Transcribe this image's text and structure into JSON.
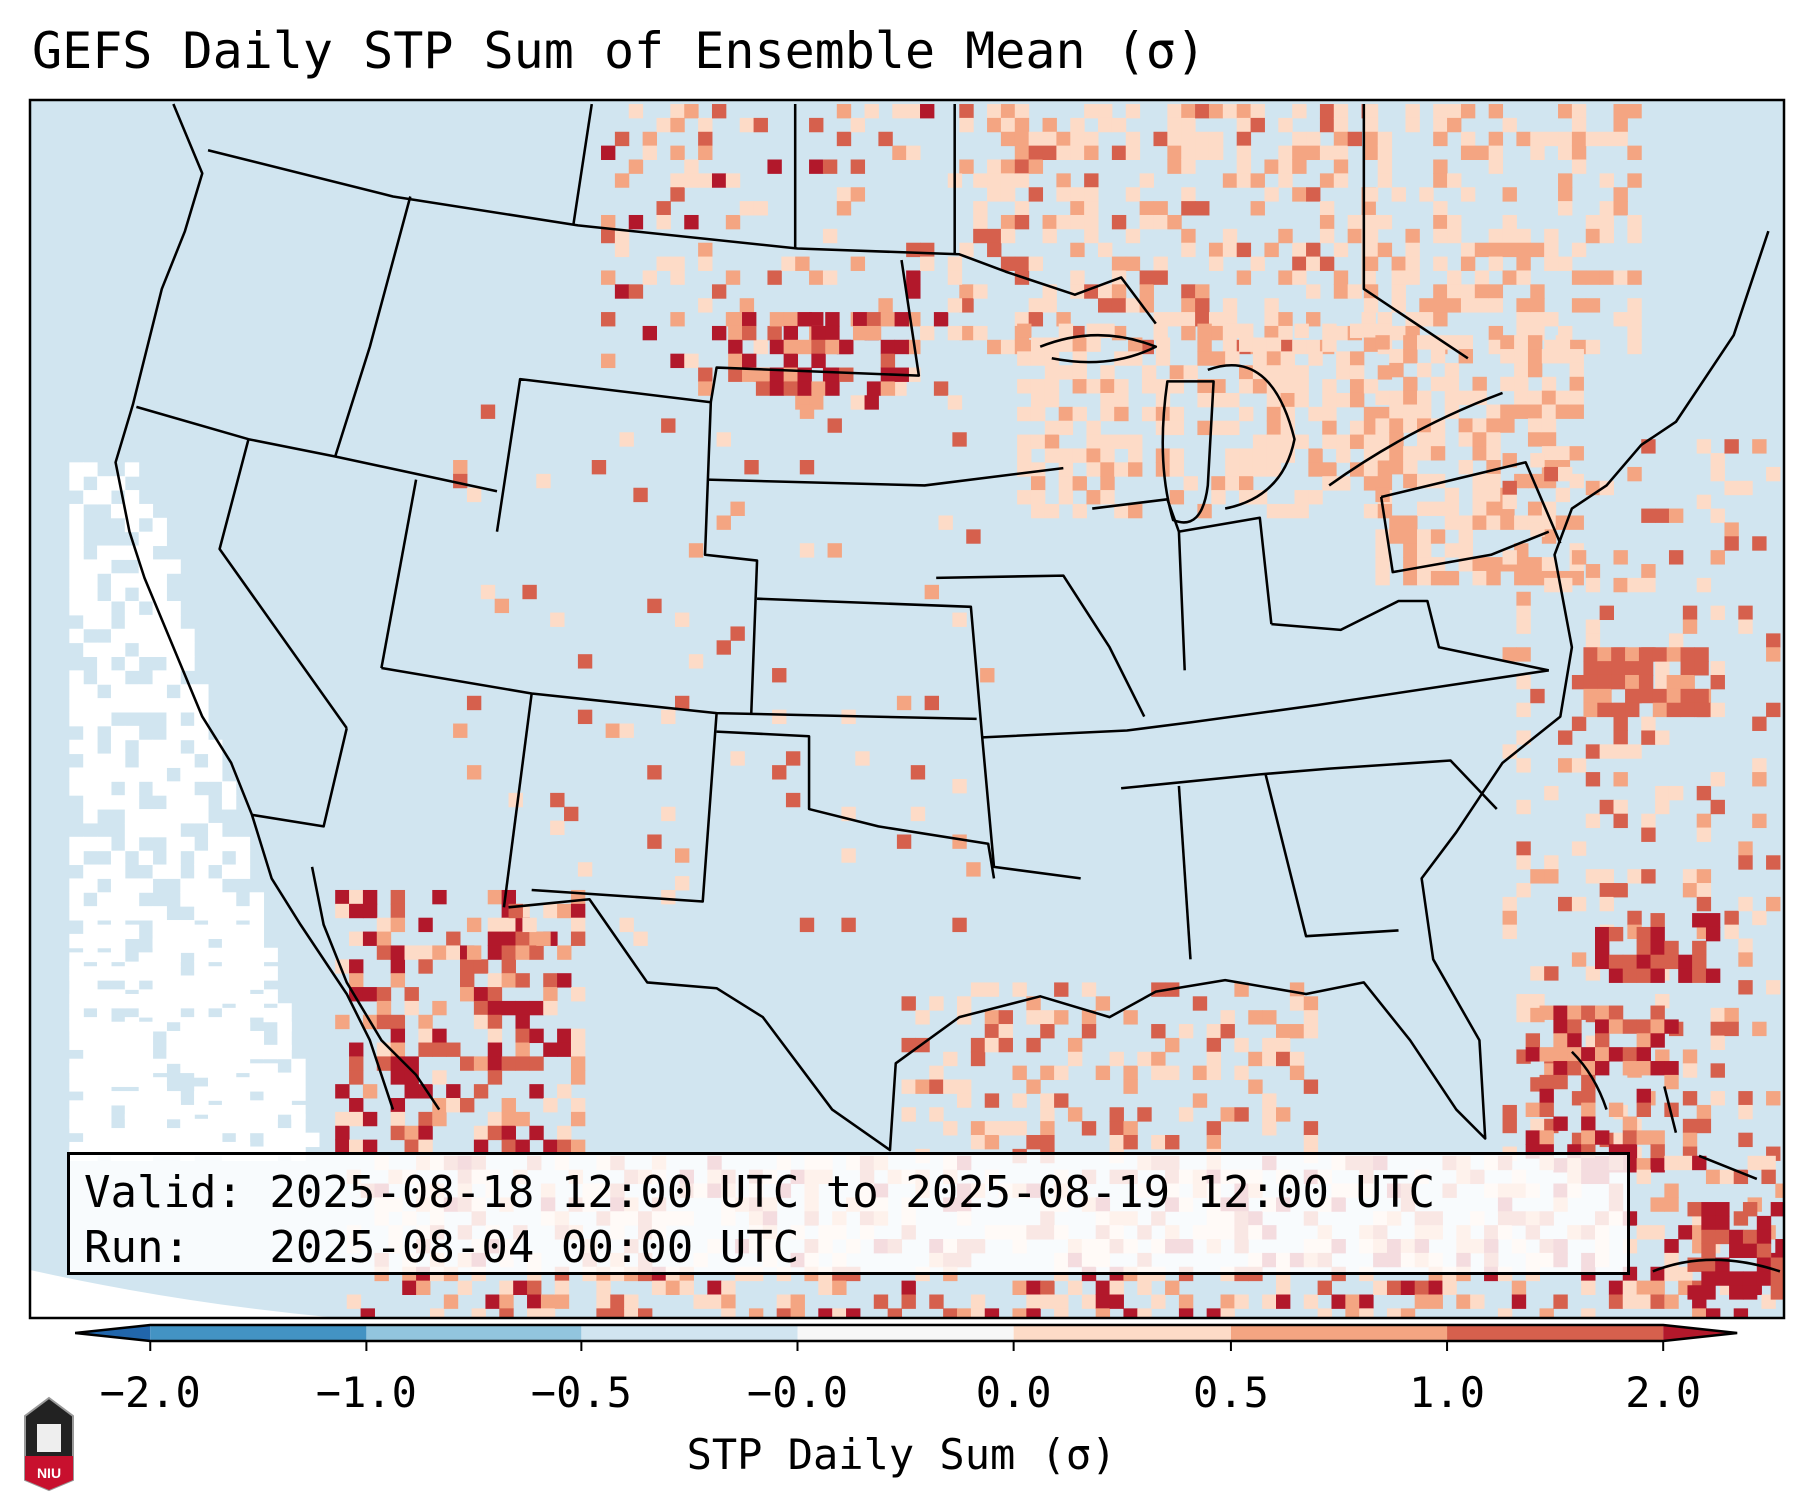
{
  "title": "GEFS Daily STP Sum of Ensemble Mean (σ)",
  "legend": {
    "valid": "Valid: 2025-08-18 12:00 UTC to 2025-08-19 12:00 UTC",
    "run": "Run:   2025-08-04 00:00 UTC"
  },
  "colorbar": {
    "label": "STP Daily Sum (σ)",
    "ticks": [
      "−2.0",
      "−1.0",
      "−0.5",
      "−0.0",
      "0.0",
      "0.5",
      "1.0",
      "2.0"
    ],
    "colors": [
      "#2166ac",
      "#4393c3",
      "#92c5de",
      "#d1e5f0",
      "#f7f7f7",
      "#fddbc7",
      "#f4a582",
      "#d6604d",
      "#b2182b"
    ],
    "extend": "both"
  },
  "logo": {
    "text": "NIU"
  }
}
